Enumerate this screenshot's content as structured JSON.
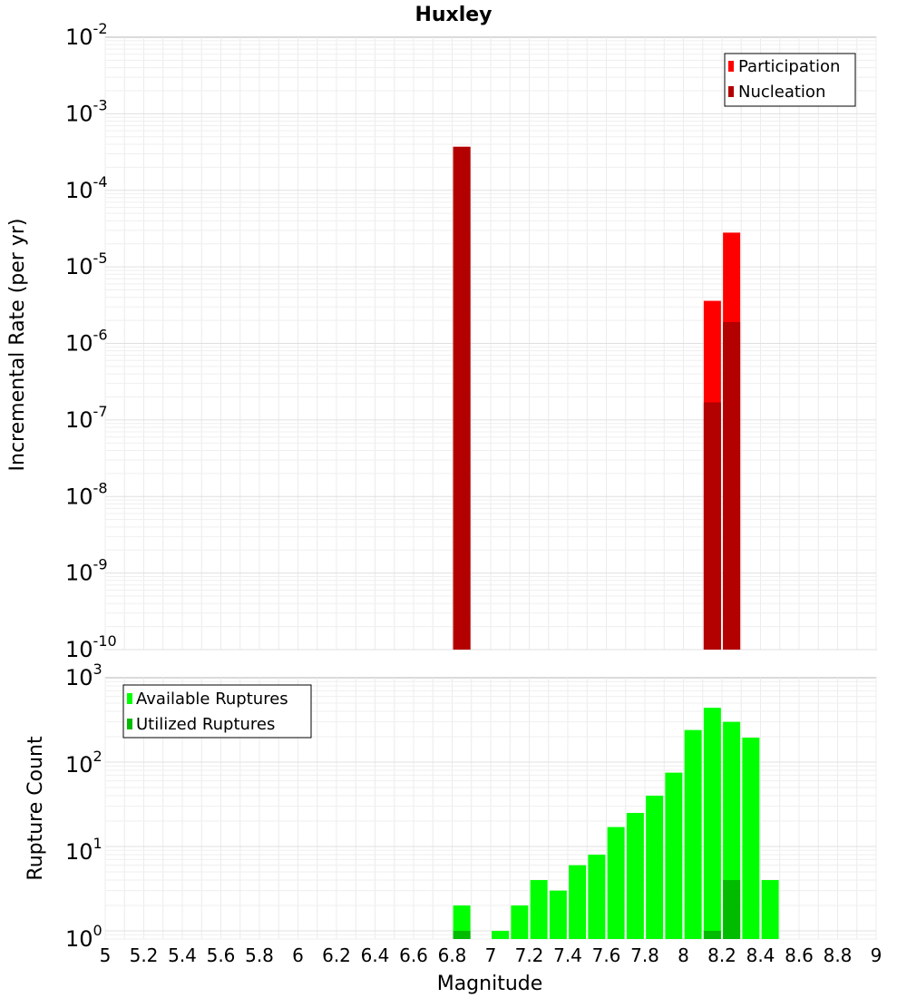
{
  "chart_data": [
    {
      "type": "bar",
      "title": "Huxley",
      "ylabel": "Incremental Rate (per yr)",
      "yscale": "log",
      "ylim": [
        1e-10,
        0.01
      ],
      "xlim": [
        5,
        9
      ],
      "grid": true,
      "legend_position": "top-right",
      "series": [
        {
          "name": "Participation",
          "color": "#ff0000",
          "points": [
            {
              "x": 6.85,
              "y": 0.00037
            },
            {
              "x": 8.15,
              "y": 3.6e-06
            },
            {
              "x": 8.25,
              "y": 2.8e-05
            }
          ]
        },
        {
          "name": "Nucleation",
          "color": "#b30000",
          "points": [
            {
              "x": 6.85,
              "y": 0.00037
            },
            {
              "x": 8.15,
              "y": 1.7e-07
            },
            {
              "x": 8.25,
              "y": 1.9e-06
            }
          ]
        }
      ]
    },
    {
      "type": "bar",
      "xlabel": "Magnitude",
      "ylabel": "Rupture Count",
      "yscale": "log",
      "ylim": [
        0.8,
        1000
      ],
      "xlim": [
        5,
        9
      ],
      "grid": true,
      "legend_position": "top-left",
      "series": [
        {
          "name": "Available Ruptures",
          "color": "#00ff00",
          "points": [
            {
              "x": 6.85,
              "y": 2
            },
            {
              "x": 7.05,
              "y": 1
            },
            {
              "x": 7.15,
              "y": 2
            },
            {
              "x": 7.25,
              "y": 4
            },
            {
              "x": 7.35,
              "y": 3
            },
            {
              "x": 7.45,
              "y": 6
            },
            {
              "x": 7.55,
              "y": 8
            },
            {
              "x": 7.65,
              "y": 17
            },
            {
              "x": 7.75,
              "y": 25
            },
            {
              "x": 7.85,
              "y": 40
            },
            {
              "x": 7.95,
              "y": 75
            },
            {
              "x": 8.05,
              "y": 240
            },
            {
              "x": 8.15,
              "y": 440
            },
            {
              "x": 8.25,
              "y": 300
            },
            {
              "x": 8.35,
              "y": 195
            },
            {
              "x": 8.45,
              "y": 4
            }
          ]
        },
        {
          "name": "Utilized Ruptures",
          "color": "#00bb00",
          "points": [
            {
              "x": 6.85,
              "y": 1
            },
            {
              "x": 8.15,
              "y": 1
            },
            {
              "x": 8.25,
              "y": 4
            }
          ]
        }
      ]
    }
  ],
  "x_ticks": [
    "5",
    "5.2",
    "5.4",
    "5.6",
    "5.8",
    "6",
    "6.2",
    "6.4",
    "6.6",
    "6.8",
    "7",
    "7.2",
    "7.4",
    "7.6",
    "7.8",
    "8",
    "8.2",
    "8.4",
    "8.6",
    "8.8",
    "9"
  ],
  "top_y_ticks": [
    {
      "base": "10",
      "exp": "-10"
    },
    {
      "base": "10",
      "exp": "-9"
    },
    {
      "base": "10",
      "exp": "-8"
    },
    {
      "base": "10",
      "exp": "-7"
    },
    {
      "base": "10",
      "exp": "-6"
    },
    {
      "base": "10",
      "exp": "-5"
    },
    {
      "base": "10",
      "exp": "-4"
    },
    {
      "base": "10",
      "exp": "-3"
    },
    {
      "base": "10",
      "exp": "-2"
    }
  ],
  "bottom_y_ticks": [
    {
      "base": "10",
      "exp": "0"
    },
    {
      "base": "10",
      "exp": "1"
    },
    {
      "base": "10",
      "exp": "2"
    },
    {
      "base": "10",
      "exp": "3"
    }
  ]
}
